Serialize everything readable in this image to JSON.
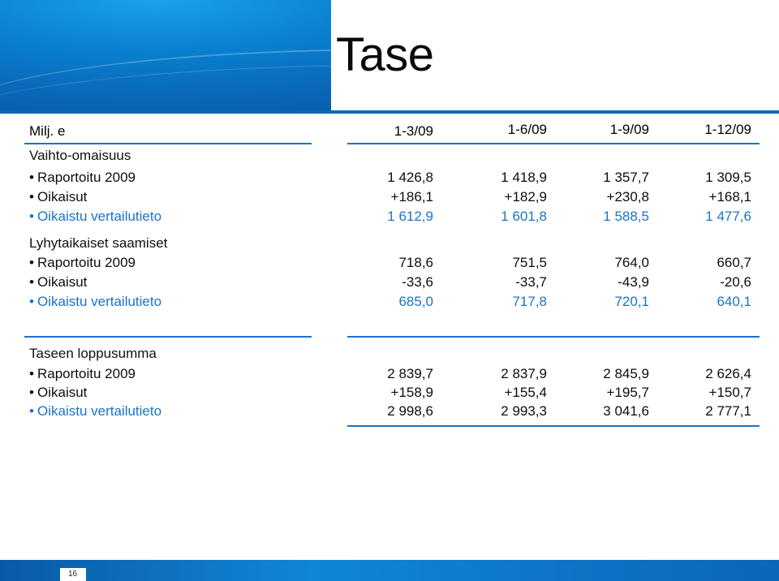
{
  "title": "Tase",
  "unit_label": "Milj. e",
  "columns": [
    "1-3/09",
    "1-6/09",
    "1-9/09",
    "1-12/09"
  ],
  "sections": [
    {
      "heading": "Vaihto-omaisuus",
      "rows": [
        {
          "label": "Raportoitu 2009",
          "values": [
            "1 426,8",
            "1 418,9",
            "1 357,7",
            "1 309,5"
          ]
        },
        {
          "label": "Oikaisut",
          "values": [
            "+186,1",
            "+182,9",
            "+230,8",
            "+168,1"
          ]
        },
        {
          "label": "Oikaistu vertailutieto",
          "values": [
            "1 612,9",
            "1 601,8",
            "1 588,5",
            "1 477,6"
          ]
        }
      ]
    },
    {
      "heading": "Lyhytaikaiset saamiset",
      "rows": [
        {
          "label": "Raportoitu 2009",
          "values": [
            "718,6",
            "751,5",
            "764,0",
            "660,7"
          ]
        },
        {
          "label": "Oikaisut",
          "values": [
            "-33,6",
            "-33,7",
            "-43,9",
            "-20,6"
          ]
        },
        {
          "label": "Oikaistu vertailutieto",
          "values": [
            "685,0",
            "717,8",
            "720,1",
            "640,1"
          ]
        }
      ]
    },
    {
      "heading": "Taseen loppusumma",
      "rows": [
        {
          "label": "Raportoitu 2009",
          "values": [
            "2 839,7",
            "2 837,9",
            "2 845,9",
            "2 626,4"
          ]
        },
        {
          "label": "Oikaisut",
          "values": [
            "+158,9",
            "+155,4",
            "+195,7",
            "+150,7"
          ]
        },
        {
          "label": "Oikaistu vertailutieto",
          "values": [
            "2 998,6",
            "2 993,3",
            "3 041,6",
            "2 777,1"
          ]
        }
      ]
    }
  ],
  "page_number": "16",
  "colors": {
    "accent": "#1a73c9",
    "banner": "#0a7fcf"
  }
}
